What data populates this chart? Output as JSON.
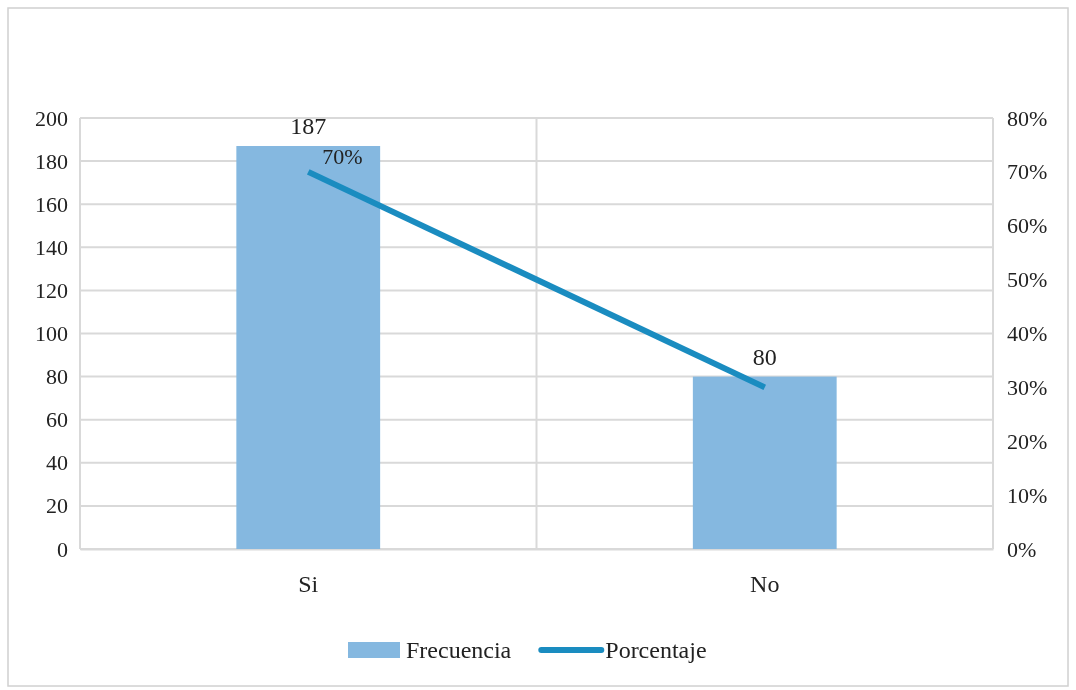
{
  "chart_data": {
    "type": "bar",
    "categories": [
      "Si",
      "No"
    ],
    "series": [
      {
        "name": "Frecuencia",
        "color": "#85b8e0",
        "values": [
          187,
          80
        ],
        "value_labels": [
          "187",
          "80"
        ]
      },
      {
        "name": "Porcentaje",
        "type": "line",
        "axis": "y2",
        "color": "#1a8cc0",
        "values": [
          70,
          30
        ],
        "value_labels": [
          "70%",
          null
        ]
      }
    ],
    "ylim": [
      0,
      200
    ],
    "yticks": [
      0,
      20,
      40,
      60,
      80,
      100,
      120,
      140,
      160,
      180,
      200
    ],
    "y2lim": [
      0,
      80
    ],
    "y2ticks": [
      {
        "value": 0,
        "label": "0%"
      },
      {
        "value": 10,
        "label": "10%"
      },
      {
        "value": 20,
        "label": "20%"
      },
      {
        "value": 30,
        "label": "30%"
      },
      {
        "value": 40,
        "label": "40%"
      },
      {
        "value": 50,
        "label": "50%"
      },
      {
        "value": 60,
        "label": "60%"
      },
      {
        "value": 70,
        "label": "70%"
      },
      {
        "value": 80,
        "label": "80%"
      }
    ],
    "grid": true,
    "legend": "bottom",
    "line_style": "solid",
    "marker": "none"
  }
}
